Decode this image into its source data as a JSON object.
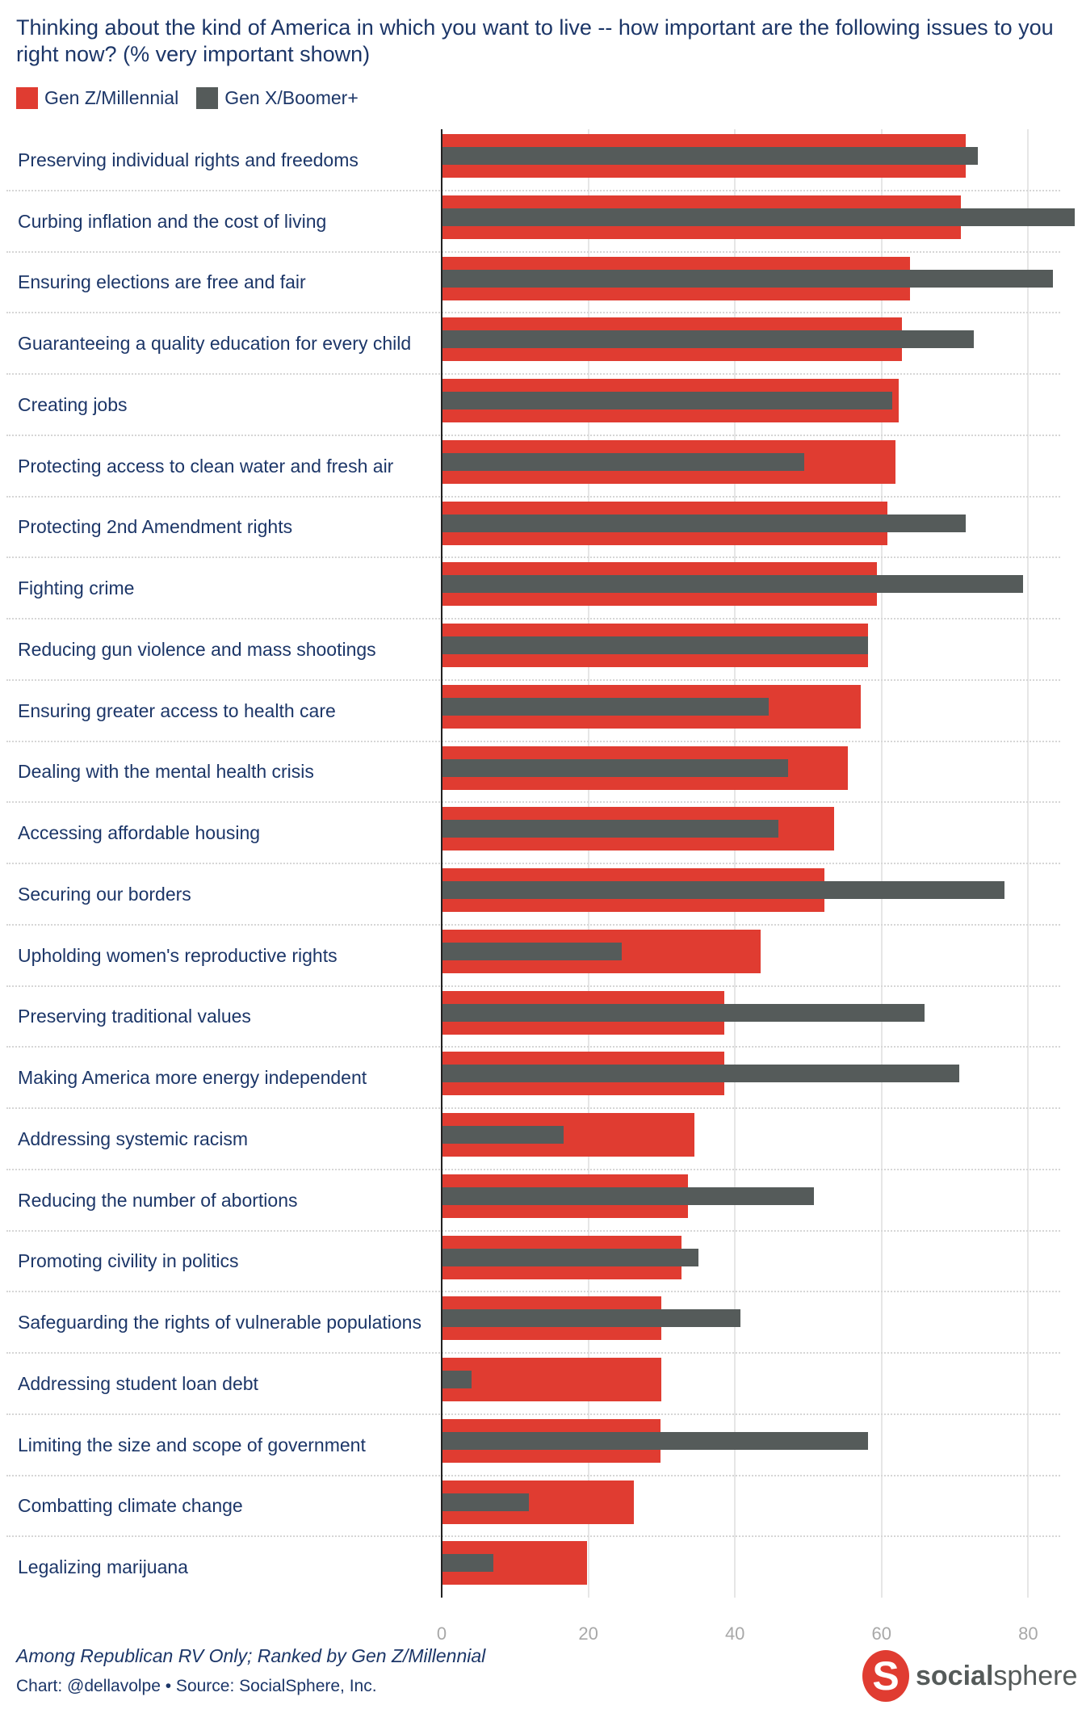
{
  "chart_data": {
    "type": "bar",
    "orientation": "horizontal",
    "title": "Thinking about the kind of America in which you want to live -- how important are the following issues to you right now? (% very important shown)",
    "legend_position": "top-left",
    "grid": true,
    "xlim": [
      0,
      86
    ],
    "xticks": [
      0,
      20,
      40,
      60,
      80
    ],
    "categories": [
      "Preserving individual rights and freedoms",
      "Curbing inflation and the cost of living",
      "Ensuring elections are free and fair",
      "Guaranteeing a quality education for every child",
      "Creating jobs",
      "Protecting access to clean water and fresh air",
      "Protecting 2nd Amendment rights",
      "Fighting crime",
      "Reducing gun violence and mass shootings",
      "Ensuring greater access to health care",
      "Dealing with the mental health crisis",
      "Accessing affordable housing",
      "Securing our borders",
      "Upholding women's reproductive rights",
      "Preserving traditional values",
      "Making America more energy independent",
      "Addressing systemic racism",
      "Reducing the number of abortions",
      "Promoting civility in politics",
      "Safeguarding the rights of vulnerable populations",
      "Addressing student loan debt",
      "Limiting the size and scope of government",
      "Combatting climate change",
      "Legalizing marijuana"
    ],
    "series": [
      {
        "name": "Gen Z/Millennial",
        "color": "#e03c31",
        "values": [
          71.5,
          70.8,
          63.9,
          62.8,
          62.3,
          61.9,
          60.8,
          59.4,
          58.1,
          57.2,
          55.4,
          53.5,
          52.2,
          43.5,
          38.5,
          38.5,
          34.5,
          33.6,
          32.7,
          30.0,
          30.0,
          29.8,
          26.2,
          19.8
        ]
      },
      {
        "name": "Gen X/Boomer+",
        "color": "#555b5a",
        "values": [
          73.1,
          86.3,
          83.4,
          72.6,
          61.5,
          49.4,
          71.5,
          79.3,
          58.1,
          44.6,
          47.3,
          45.9,
          76.8,
          24.6,
          65.9,
          70.6,
          16.6,
          50.8,
          35.0,
          40.8,
          4.1,
          58.2,
          11.9,
          7.0
        ]
      }
    ]
  },
  "footer": {
    "note": "Among Republican RV Only; Ranked by Gen Z/Millennial",
    "credit": "Chart: @dellavolpe • Source: SocialSphere, Inc."
  },
  "logo": {
    "text_bold": "social",
    "text_light": "sphere"
  }
}
